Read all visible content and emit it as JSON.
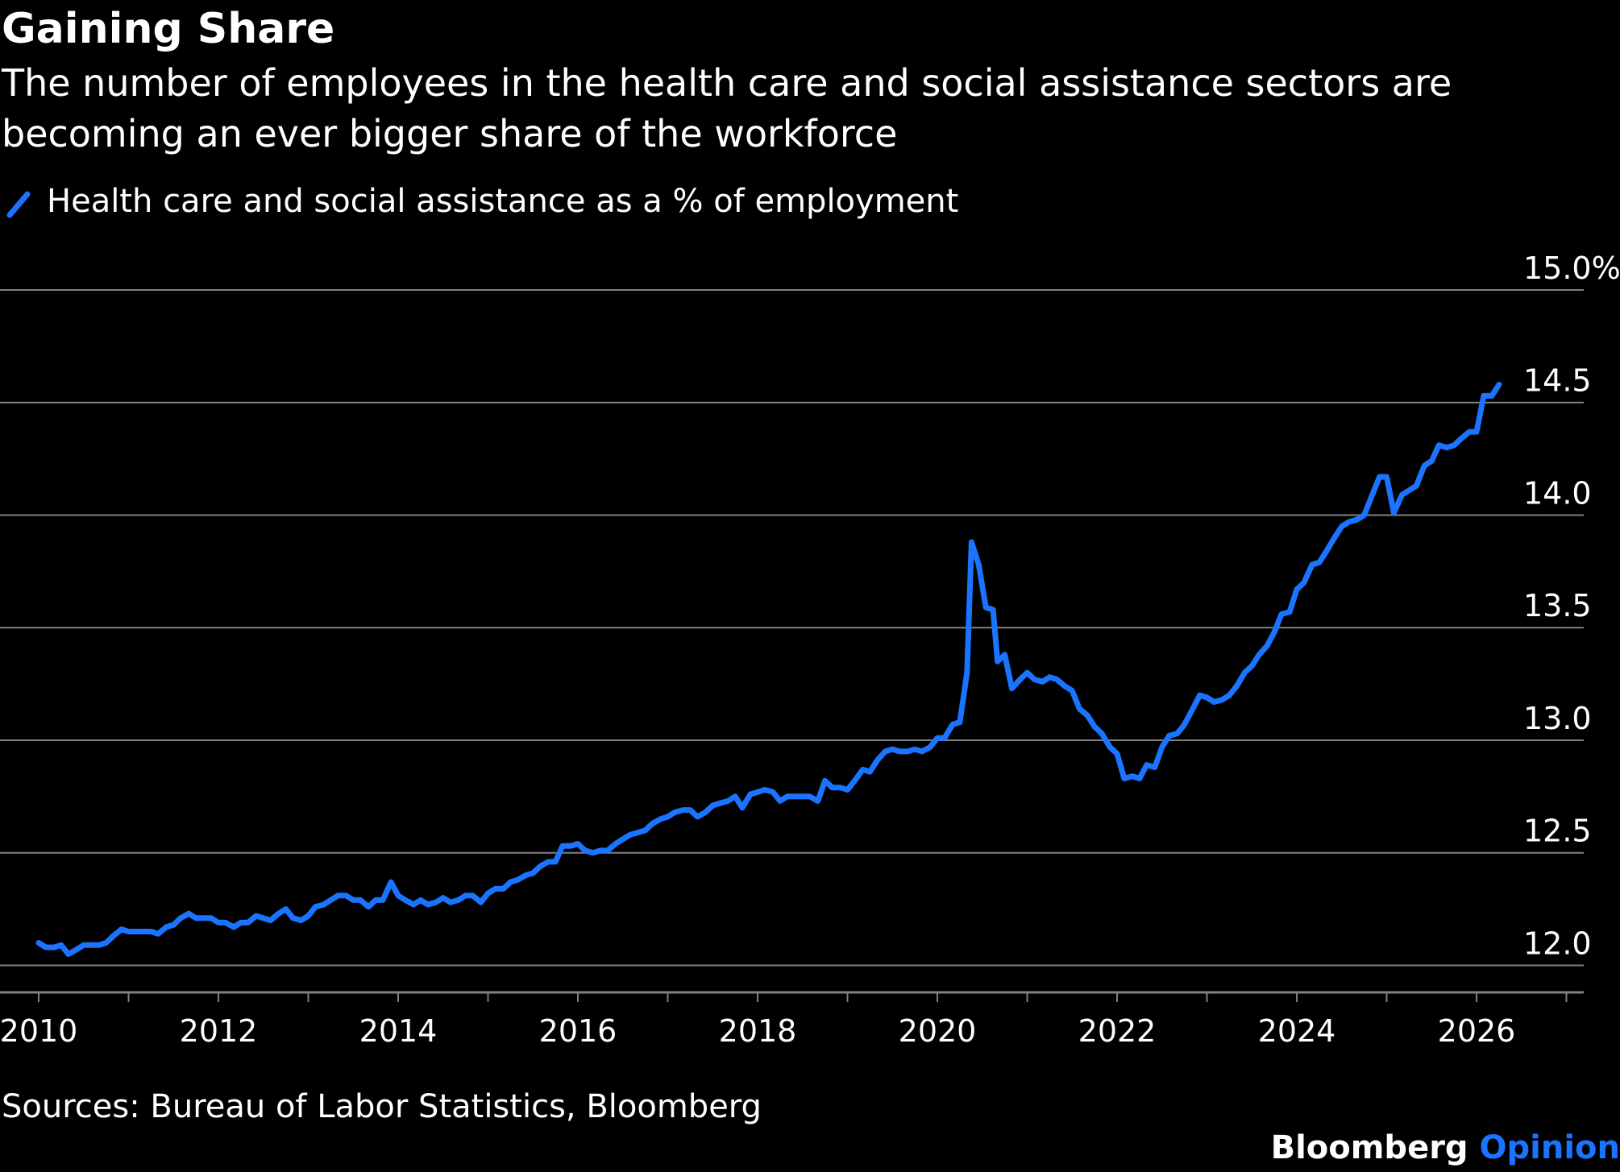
{
  "title": "Gaining Share",
  "subtitle": "The number of employees in the health care and social assistance sectors are becoming an ever bigger share of the workforce",
  "source": "Sources: Bureau of Labor Statistics, Bloomberg",
  "brand": {
    "name": "Bloomberg",
    "suffix": "Opinion"
  },
  "colors": {
    "background": "#000000",
    "series": "#1a74ff",
    "grid": "#808080",
    "text": "#ffffff"
  },
  "chart_data": {
    "type": "line",
    "title": "Gaining Share",
    "xlabel": "",
    "ylabel": "",
    "xlim": [
      2010,
      2027.15
    ],
    "ylim": [
      11.88,
      15.0
    ],
    "grid": true,
    "legend_position": "top-left",
    "x_ticks": [
      "2010",
      "2012",
      "2014",
      "2016",
      "2018",
      "2020",
      "2022",
      "2024",
      "2026"
    ],
    "y_ticks": [
      {
        "value": 15.0,
        "label": "15.0%"
      },
      {
        "value": 14.5,
        "label": "14.5"
      },
      {
        "value": 14.0,
        "label": "14.0"
      },
      {
        "value": 13.5,
        "label": "13.5"
      },
      {
        "value": 13.0,
        "label": "13.0"
      },
      {
        "value": 12.5,
        "label": "12.5"
      },
      {
        "value": 12.0,
        "label": "12.0"
      }
    ],
    "series": [
      {
        "name": "Health care and social assistance as a % of employment",
        "points": [
          [
            2010.0,
            12.1
          ],
          [
            2010.08,
            12.08
          ],
          [
            2010.17,
            12.08
          ],
          [
            2010.25,
            12.09
          ],
          [
            2010.33,
            12.05
          ],
          [
            2010.42,
            12.07
          ],
          [
            2010.5,
            12.09
          ],
          [
            2010.67,
            12.09
          ],
          [
            2010.75,
            12.1
          ],
          [
            2010.83,
            12.13
          ],
          [
            2010.92,
            12.16
          ],
          [
            2011.0,
            12.15
          ],
          [
            2011.25,
            12.15
          ],
          [
            2011.33,
            12.14
          ],
          [
            2011.42,
            12.17
          ],
          [
            2011.5,
            12.18
          ],
          [
            2011.58,
            12.21
          ],
          [
            2011.67,
            12.23
          ],
          [
            2011.75,
            12.21
          ],
          [
            2011.92,
            12.21
          ],
          [
            2012.0,
            12.19
          ],
          [
            2012.08,
            12.19
          ],
          [
            2012.17,
            12.17
          ],
          [
            2012.25,
            12.19
          ],
          [
            2012.33,
            12.19
          ],
          [
            2012.42,
            12.22
          ],
          [
            2012.5,
            12.21
          ],
          [
            2012.58,
            12.2
          ],
          [
            2012.67,
            12.23
          ],
          [
            2012.75,
            12.25
          ],
          [
            2012.83,
            12.21
          ],
          [
            2012.92,
            12.2
          ],
          [
            2013.0,
            12.22
          ],
          [
            2013.08,
            12.26
          ],
          [
            2013.17,
            12.27
          ],
          [
            2013.25,
            12.29
          ],
          [
            2013.33,
            12.31
          ],
          [
            2013.42,
            12.31
          ],
          [
            2013.5,
            12.29
          ],
          [
            2013.58,
            12.29
          ],
          [
            2013.67,
            12.26
          ],
          [
            2013.75,
            12.29
          ],
          [
            2013.83,
            12.29
          ],
          [
            2013.92,
            12.37
          ],
          [
            2014.0,
            12.31
          ],
          [
            2014.08,
            12.29
          ],
          [
            2014.17,
            12.27
          ],
          [
            2014.25,
            12.29
          ],
          [
            2014.33,
            12.27
          ],
          [
            2014.42,
            12.28
          ],
          [
            2014.5,
            12.3
          ],
          [
            2014.58,
            12.28
          ],
          [
            2014.67,
            12.29
          ],
          [
            2014.75,
            12.31
          ],
          [
            2014.83,
            12.31
          ],
          [
            2014.92,
            12.28
          ],
          [
            2015.0,
            12.32
          ],
          [
            2015.08,
            12.34
          ],
          [
            2015.17,
            12.34
          ],
          [
            2015.25,
            12.37
          ],
          [
            2015.33,
            12.38
          ],
          [
            2015.42,
            12.4
          ],
          [
            2015.5,
            12.41
          ],
          [
            2015.58,
            12.44
          ],
          [
            2015.67,
            12.46
          ],
          [
            2015.75,
            12.46
          ],
          [
            2015.83,
            12.53
          ],
          [
            2015.92,
            12.53
          ],
          [
            2016.0,
            12.54
          ],
          [
            2016.08,
            12.51
          ],
          [
            2016.17,
            12.5
          ],
          [
            2016.25,
            12.51
          ],
          [
            2016.33,
            12.51
          ],
          [
            2016.42,
            12.54
          ],
          [
            2016.5,
            12.56
          ],
          [
            2016.58,
            12.58
          ],
          [
            2016.67,
            12.59
          ],
          [
            2016.75,
            12.6
          ],
          [
            2016.83,
            12.63
          ],
          [
            2016.92,
            12.65
          ],
          [
            2017.0,
            12.66
          ],
          [
            2017.08,
            12.68
          ],
          [
            2017.17,
            12.69
          ],
          [
            2017.25,
            12.69
          ],
          [
            2017.33,
            12.66
          ],
          [
            2017.42,
            12.68
          ],
          [
            2017.5,
            12.71
          ],
          [
            2017.58,
            12.72
          ],
          [
            2017.67,
            12.73
          ],
          [
            2017.75,
            12.75
          ],
          [
            2017.83,
            12.7
          ],
          [
            2017.92,
            12.76
          ],
          [
            2018.0,
            12.77
          ],
          [
            2018.08,
            12.78
          ],
          [
            2018.17,
            12.77
          ],
          [
            2018.25,
            12.73
          ],
          [
            2018.33,
            12.75
          ],
          [
            2018.42,
            12.75
          ],
          [
            2018.58,
            12.75
          ],
          [
            2018.67,
            12.73
          ],
          [
            2018.75,
            12.82
          ],
          [
            2018.83,
            12.79
          ],
          [
            2018.92,
            12.79
          ],
          [
            2019.0,
            12.78
          ],
          [
            2019.08,
            12.82
          ],
          [
            2019.17,
            12.87
          ],
          [
            2019.25,
            12.86
          ],
          [
            2019.33,
            12.91
          ],
          [
            2019.42,
            12.95
          ],
          [
            2019.5,
            12.96
          ],
          [
            2019.58,
            12.95
          ],
          [
            2019.67,
            12.95
          ],
          [
            2019.75,
            12.96
          ],
          [
            2019.83,
            12.95
          ],
          [
            2019.92,
            12.97
          ],
          [
            2020.0,
            13.01
          ],
          [
            2020.08,
            13.01
          ],
          [
            2020.17,
            13.07
          ],
          [
            2020.25,
            13.08
          ],
          [
            2020.33,
            13.3
          ],
          [
            2020.38,
            13.88
          ],
          [
            2020.46,
            13.78
          ],
          [
            2020.54,
            13.59
          ],
          [
            2020.62,
            13.58
          ],
          [
            2020.67,
            13.35
          ],
          [
            2020.75,
            13.38
          ],
          [
            2020.83,
            13.23
          ],
          [
            2020.92,
            13.27
          ],
          [
            2021.0,
            13.3
          ],
          [
            2021.08,
            13.27
          ],
          [
            2021.17,
            13.26
          ],
          [
            2021.25,
            13.28
          ],
          [
            2021.33,
            13.27
          ],
          [
            2021.42,
            13.24
          ],
          [
            2021.5,
            13.22
          ],
          [
            2021.58,
            13.14
          ],
          [
            2021.67,
            13.11
          ],
          [
            2021.75,
            13.06
          ],
          [
            2021.83,
            13.03
          ],
          [
            2021.92,
            12.97
          ],
          [
            2022.0,
            12.94
          ],
          [
            2022.08,
            12.83
          ],
          [
            2022.17,
            12.84
          ],
          [
            2022.25,
            12.83
          ],
          [
            2022.33,
            12.89
          ],
          [
            2022.42,
            12.88
          ],
          [
            2022.5,
            12.97
          ],
          [
            2022.58,
            13.02
          ],
          [
            2022.67,
            13.03
          ],
          [
            2022.75,
            13.07
          ],
          [
            2022.83,
            13.13
          ],
          [
            2022.92,
            13.2
          ],
          [
            2023.0,
            13.19
          ],
          [
            2023.08,
            13.17
          ],
          [
            2023.17,
            13.18
          ],
          [
            2023.25,
            13.2
          ],
          [
            2023.33,
            13.24
          ],
          [
            2023.42,
            13.3
          ],
          [
            2023.5,
            13.33
          ],
          [
            2023.58,
            13.38
          ],
          [
            2023.67,
            13.42
          ],
          [
            2023.75,
            13.48
          ],
          [
            2023.83,
            13.56
          ],
          [
            2023.92,
            13.57
          ],
          [
            2024.0,
            13.67
          ],
          [
            2024.08,
            13.7
          ],
          [
            2024.17,
            13.78
          ],
          [
            2024.25,
            13.79
          ],
          [
            2024.33,
            13.84
          ],
          [
            2024.42,
            13.9
          ],
          [
            2024.5,
            13.95
          ],
          [
            2024.58,
            13.97
          ],
          [
            2024.67,
            13.98
          ],
          [
            2024.75,
            14.0
          ],
          [
            2024.83,
            14.08
          ],
          [
            2024.92,
            14.17
          ],
          [
            2025.0,
            14.17
          ],
          [
            2025.08,
            14.01
          ],
          [
            2025.17,
            14.09
          ],
          [
            2025.25,
            14.11
          ],
          [
            2025.33,
            14.13
          ],
          [
            2025.42,
            14.22
          ],
          [
            2025.5,
            14.24
          ],
          [
            2025.58,
            14.31
          ],
          [
            2025.67,
            14.3
          ],
          [
            2025.75,
            14.31
          ],
          [
            2025.83,
            14.34
          ],
          [
            2025.92,
            14.37
          ],
          [
            2026.0,
            14.37
          ],
          [
            2026.08,
            14.53
          ],
          [
            2026.17,
            14.53
          ],
          [
            2026.25,
            14.58
          ]
        ]
      }
    ]
  }
}
